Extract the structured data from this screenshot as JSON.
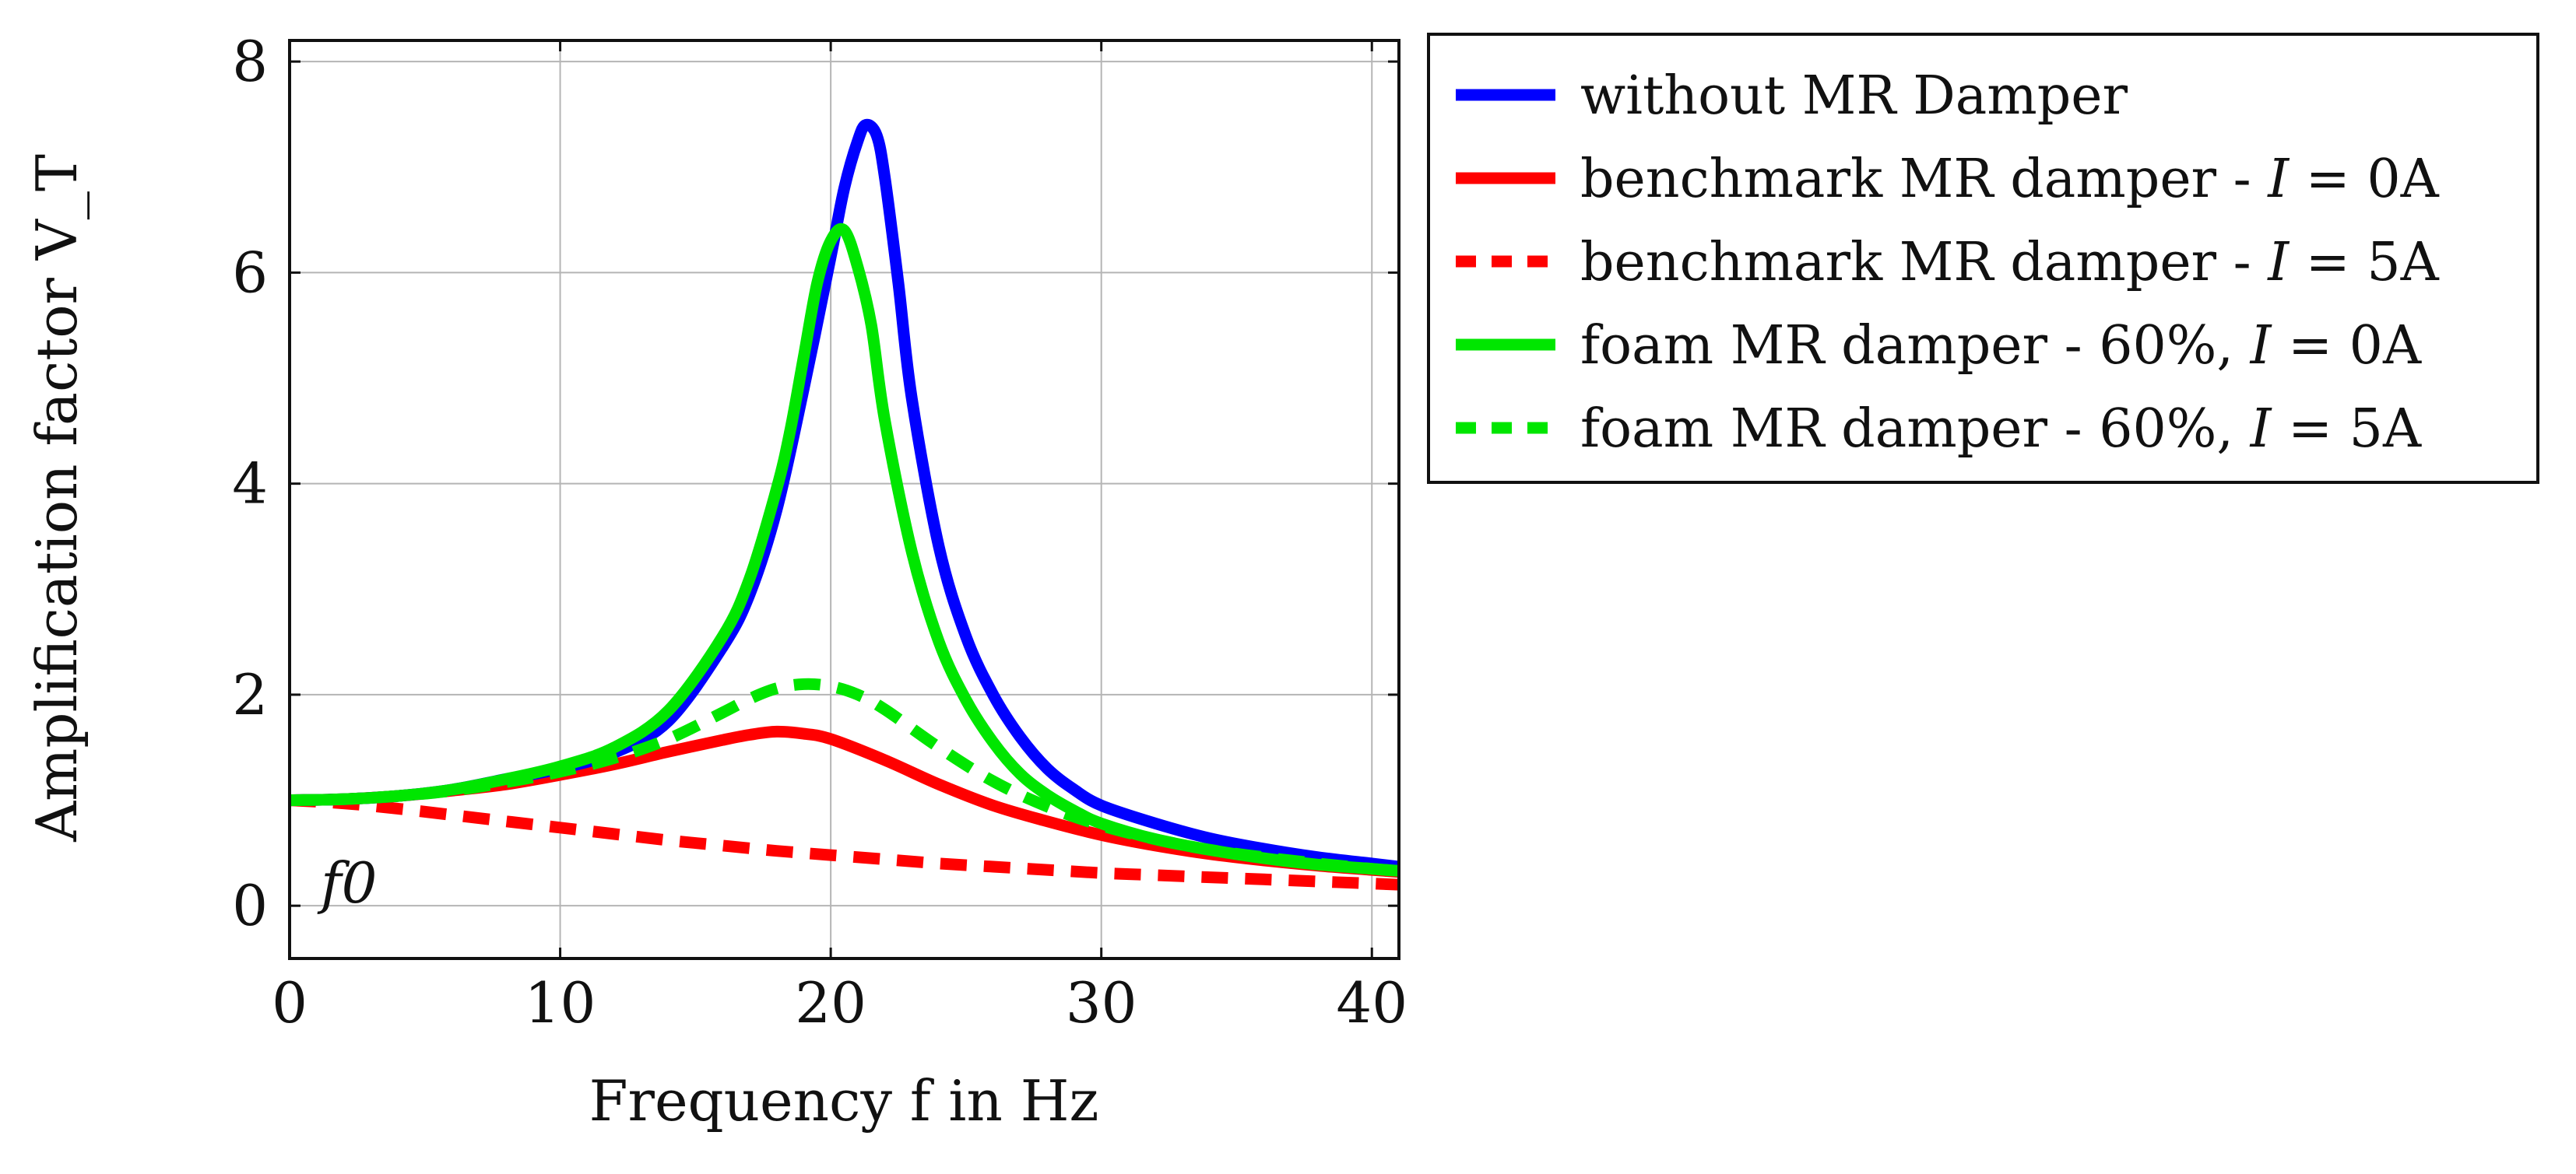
{
  "chart_data": {
    "type": "line",
    "title": "",
    "xlabel": "Frequency f in Hz",
    "ylabel": "Amplification factor V_T",
    "xlim": [
      0,
      41
    ],
    "ylim": [
      -0.5,
      8.2
    ],
    "xticks": [
      0,
      10,
      20,
      30,
      40
    ],
    "yticks": [
      0,
      2,
      4,
      6,
      8
    ],
    "grid": true,
    "legend_position": "outside-right-top",
    "annotation": "f0",
    "series": [
      {
        "name": "without MR Damper",
        "color": "#0000ff",
        "dash": "solid",
        "x": [
          0,
          2,
          4,
          6,
          8,
          10,
          12,
          14,
          16,
          17,
          18,
          19,
          20,
          20.5,
          21,
          21.3,
          21.7,
          22,
          22.5,
          23,
          24,
          25,
          26,
          27,
          28,
          29,
          30,
          32,
          34,
          36,
          38,
          40,
          41
        ],
        "y": [
          1.0,
          1.01,
          1.04,
          1.1,
          1.2,
          1.3,
          1.45,
          1.75,
          2.45,
          2.95,
          3.75,
          4.9,
          6.15,
          6.8,
          7.25,
          7.4,
          7.3,
          6.9,
          5.9,
          4.8,
          3.4,
          2.55,
          2.0,
          1.6,
          1.3,
          1.1,
          0.95,
          0.78,
          0.64,
          0.54,
          0.46,
          0.4,
          0.37
        ]
      },
      {
        "name": "benchmark MR damper - I = 0A",
        "color": "#ff0000",
        "dash": "solid",
        "x": [
          0,
          2,
          4,
          6,
          8,
          10,
          12,
          14,
          16,
          17,
          18,
          19,
          20,
          22,
          24,
          26,
          28,
          30,
          32,
          34,
          36,
          38,
          40,
          41
        ],
        "y": [
          1.0,
          1.01,
          1.04,
          1.09,
          1.15,
          1.24,
          1.34,
          1.46,
          1.57,
          1.62,
          1.65,
          1.63,
          1.58,
          1.38,
          1.15,
          0.95,
          0.8,
          0.67,
          0.57,
          0.49,
          0.43,
          0.38,
          0.34,
          0.32
        ]
      },
      {
        "name": "benchmark MR damper - I = 5A",
        "color": "#ff0000",
        "dash": "dashed",
        "x": [
          0,
          2,
          4,
          6,
          8,
          10,
          12,
          14,
          16,
          18,
          20,
          22,
          24,
          26,
          28,
          30,
          32,
          34,
          36,
          38,
          40,
          41
        ],
        "y": [
          1.0,
          0.97,
          0.92,
          0.86,
          0.8,
          0.74,
          0.68,
          0.62,
          0.57,
          0.52,
          0.48,
          0.44,
          0.4,
          0.37,
          0.34,
          0.31,
          0.29,
          0.27,
          0.25,
          0.23,
          0.21,
          0.2
        ]
      },
      {
        "name": "foam MR damper - 60%, I = 0A",
        "color": "#00e600",
        "dash": "solid",
        "x": [
          0,
          2,
          4,
          6,
          8,
          10,
          12,
          14,
          16,
          17,
          18,
          18.5,
          19,
          19.5,
          20,
          20.5,
          21,
          21.5,
          22,
          23,
          24,
          25,
          26,
          27,
          28,
          29,
          30,
          32,
          34,
          36,
          38,
          40,
          41
        ],
        "y": [
          1.0,
          1.01,
          1.04,
          1.1,
          1.2,
          1.32,
          1.5,
          1.85,
          2.55,
          3.1,
          3.95,
          4.5,
          5.2,
          5.9,
          6.3,
          6.4,
          6.05,
          5.5,
          4.6,
          3.35,
          2.5,
          1.95,
          1.55,
          1.25,
          1.05,
          0.9,
          0.78,
          0.63,
          0.53,
          0.45,
          0.39,
          0.35,
          0.33
        ]
      },
      {
        "name": "foam MR damper - 60%, I = 5A",
        "color": "#00e600",
        "dash": "dashed",
        "x": [
          0,
          2,
          4,
          6,
          8,
          10,
          12,
          14,
          16,
          17,
          18,
          19,
          20,
          21,
          22,
          24,
          26,
          28,
          30,
          32,
          34,
          36,
          38,
          40,
          41
        ],
        "y": [
          1.0,
          1.01,
          1.04,
          1.09,
          1.17,
          1.27,
          1.4,
          1.58,
          1.83,
          1.96,
          2.06,
          2.1,
          2.08,
          2.0,
          1.86,
          1.5,
          1.18,
          0.94,
          0.76,
          0.63,
          0.53,
          0.46,
          0.4,
          0.35,
          0.33
        ]
      }
    ],
    "legend": [
      {
        "label": "without MR Damper"
      },
      {
        "label": "benchmark MR damper - ",
        "italic": "I",
        "tail": " = 0A"
      },
      {
        "label": "benchmark MR damper - ",
        "italic": "I",
        "tail": " = 5A"
      },
      {
        "label": "foam MR damper - 60%, ",
        "italic": "I",
        "tail": " = 0A"
      },
      {
        "label": "foam MR damper - 60%, ",
        "italic": "I",
        "tail": " = 5A"
      }
    ]
  }
}
